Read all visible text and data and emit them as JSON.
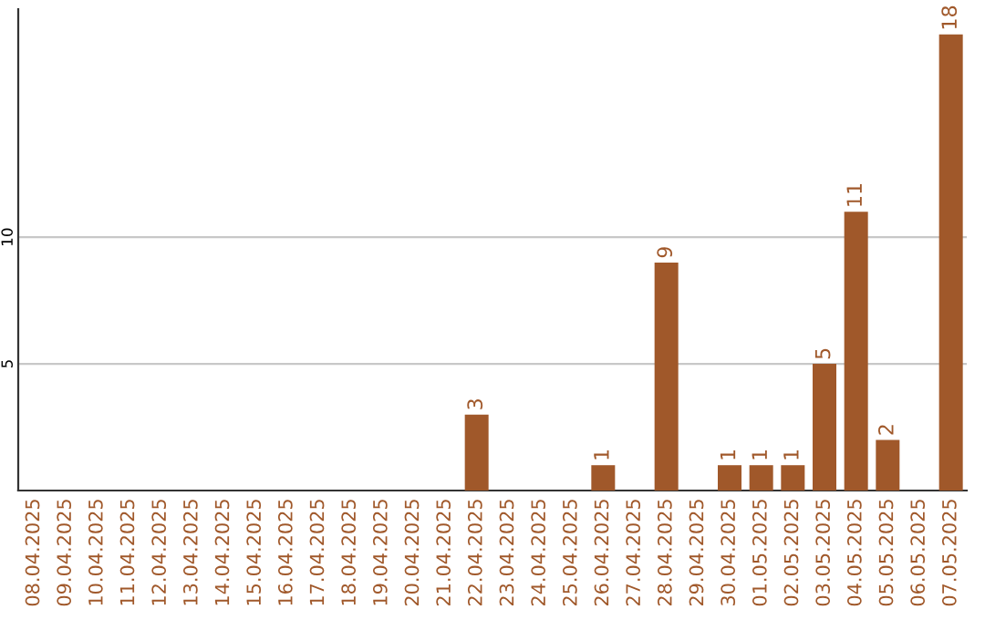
{
  "chart_data": {
    "type": "bar",
    "categories": [
      "08.04.2025",
      "09.04.2025",
      "10.04.2025",
      "11.04.2025",
      "12.04.2025",
      "13.04.2025",
      "14.04.2025",
      "15.04.2025",
      "16.04.2025",
      "17.04.2025",
      "18.04.2025",
      "19.04.2025",
      "20.04.2025",
      "21.04.2025",
      "22.04.2025",
      "23.04.2025",
      "24.04.2025",
      "25.04.2025",
      "26.04.2025",
      "27.04.2025",
      "28.04.2025",
      "29.04.2025",
      "30.04.2025",
      "01.05.2025",
      "02.05.2025",
      "03.05.2025",
      "04.05.2025",
      "05.05.2025",
      "06.05.2025",
      "07.05.2025"
    ],
    "values": [
      0,
      0,
      0,
      0,
      0,
      0,
      0,
      0,
      0,
      0,
      0,
      0,
      0,
      0,
      3,
      0,
      0,
      0,
      1,
      0,
      9,
      0,
      1,
      1,
      1,
      5,
      11,
      2,
      0,
      18
    ],
    "value_labels": [
      null,
      null,
      null,
      null,
      null,
      null,
      null,
      null,
      null,
      null,
      null,
      null,
      null,
      null,
      "3",
      null,
      null,
      null,
      "1",
      null,
      "9",
      null,
      "1",
      "1",
      "1",
      "5",
      "11",
      "2",
      null,
      "18"
    ],
    "color": "#a0582a",
    "ylim": [
      0,
      19
    ],
    "yticks": [
      5,
      10
    ],
    "grid": "y"
  }
}
